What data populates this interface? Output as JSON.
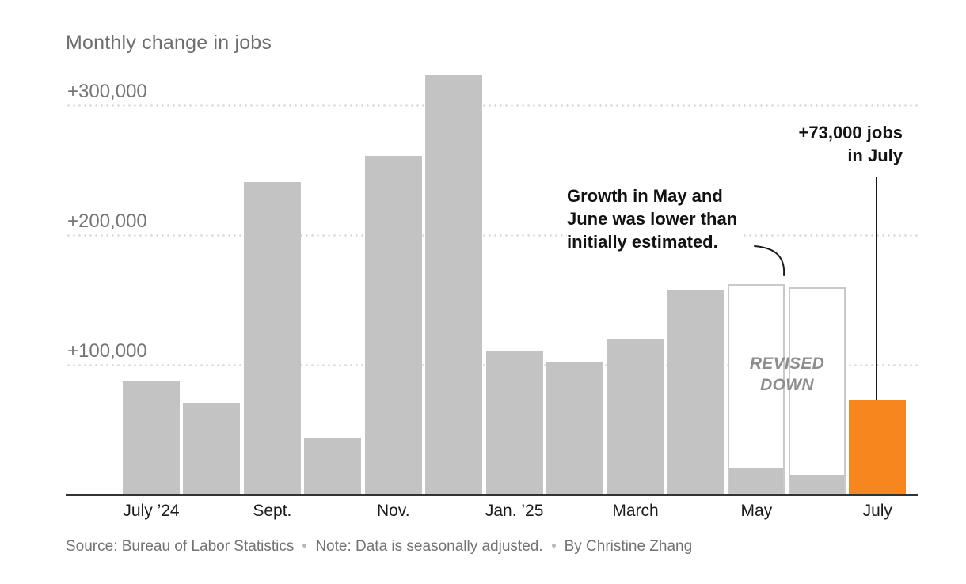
{
  "chart_data": {
    "type": "bar",
    "title": "Monthly change in jobs",
    "unit": "jobs",
    "grid": "dotted-horizontal",
    "legend_position": "none",
    "y_axis": {
      "range": [
        0,
        330000
      ],
      "ticks": [
        {
          "value": 100000,
          "label": "+100,000"
        },
        {
          "value": 200000,
          "label": "+200,000"
        },
        {
          "value": 300000,
          "label": "+300,000"
        }
      ]
    },
    "x_axis": {
      "ticks": [
        {
          "bar_index": 0,
          "label": "July ’24"
        },
        {
          "bar_index": 2,
          "label": "Sept."
        },
        {
          "bar_index": 4,
          "label": "Nov."
        },
        {
          "bar_index": 6,
          "label": "Jan. ’25"
        },
        {
          "bar_index": 8,
          "label": "March"
        },
        {
          "bar_index": 10,
          "label": "May"
        },
        {
          "bar_index": 12,
          "label": "July"
        }
      ]
    },
    "bars": [
      {
        "month": "July 2024",
        "value": 88000
      },
      {
        "month": "Aug. 2024",
        "value": 71000
      },
      {
        "month": "Sept. 2024",
        "value": 241000
      },
      {
        "month": "Oct. 2024",
        "value": 44000
      },
      {
        "month": "Nov. 2024",
        "value": 261000
      },
      {
        "month": "Dec. 2024",
        "value": 323000
      },
      {
        "month": "Jan. 2025",
        "value": 111000
      },
      {
        "month": "Feb. 2025",
        "value": 102000
      },
      {
        "month": "March 2025",
        "value": 120000
      },
      {
        "month": "April 2025",
        "value": 158000
      },
      {
        "month": "May 2025",
        "value": 19000,
        "initial_estimate": 162000,
        "revised_down": true
      },
      {
        "month": "June 2025",
        "value": 14000,
        "initial_estimate": 160000,
        "revised_down": true
      },
      {
        "month": "July 2025",
        "value": 73000,
        "highlight": true
      }
    ],
    "annotations": {
      "revision_note_lines": [
        "Growth in May and",
        "June was lower than",
        "initially estimated."
      ],
      "revised_down_lines": [
        "REVISED",
        "DOWN"
      ],
      "july_label_lines": [
        "+73,000 jobs",
        "in July"
      ]
    }
  },
  "footer": {
    "source": "Source: Bureau of Labor Statistics",
    "note": "Note: Data is seasonally adjusted.",
    "byline": "By Christine Zhang",
    "separator": "•"
  },
  "colors": {
    "bar": "#c3c3c3",
    "highlight": "#f8861e",
    "bar_outline": "#c9c9c9",
    "axis": "#333333",
    "gridline": "#d9d9d9",
    "title": "#6e6e6e",
    "y_label": "#757575",
    "x_label": "#1a1a1a",
    "annotation": "#121212",
    "revised_label": "#8d8d8d",
    "footer": "#737373",
    "callout": "#1a1a1a"
  }
}
